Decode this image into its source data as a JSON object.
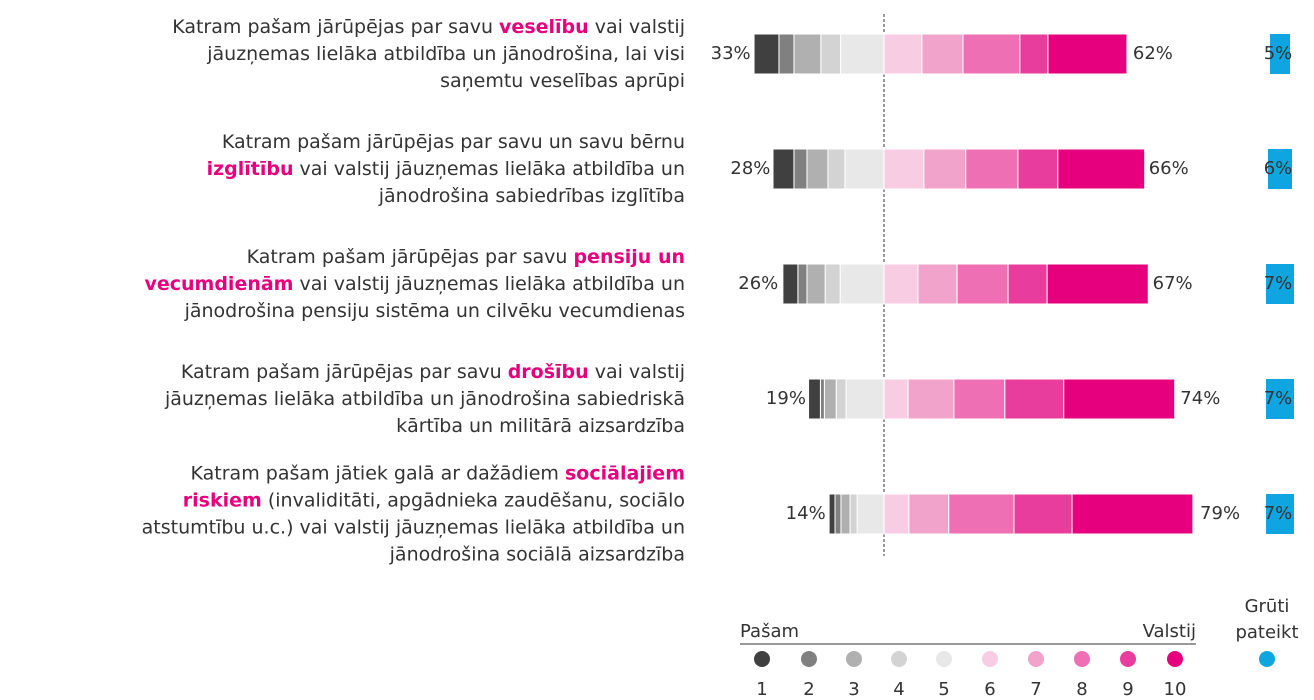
{
  "chart_data": {
    "type": "diverging_bar",
    "rows": [
      {
        "lines": [
          [
            {
              "text": "Katram pašam jārūpējas par savu ",
              "bold": false
            },
            {
              "text": "veselību",
              "bold": true
            },
            {
              "text": " vai valstij",
              "bold": false
            }
          ],
          [
            {
              "text": "jāuzņemas lielāka atbildība un jānodrošina, lai visi",
              "bold": false
            }
          ],
          [
            {
              "text": "saņemtu veselības aprūpi",
              "bold": false
            }
          ]
        ]
      },
      {
        "lines": [
          [
            {
              "text": "Katram pašam jārūpējas par savu un savu bērnu",
              "bold": false
            }
          ],
          [
            {
              "text": "izglītību",
              "bold": true
            },
            {
              "text": " vai valstij jāuzņemas lielāka atbildība un",
              "bold": false
            }
          ],
          [
            {
              "text": "jānodrošina sabiedrības izglītība",
              "bold": false
            }
          ]
        ]
      },
      {
        "lines": [
          [
            {
              "text": "Katram pašam jārūpējas par savu ",
              "bold": false
            },
            {
              "text": "pensiju un",
              "bold": true
            }
          ],
          [
            {
              "text": "vecumdienām",
              "bold": true
            },
            {
              "text": " vai valstij jāuzņemas lielāka atbildība un",
              "bold": false
            }
          ],
          [
            {
              "text": "jānodrošina pensiju sistēma un cilvēku vecumdienas",
              "bold": false
            }
          ]
        ]
      },
      {
        "lines": [
          [
            {
              "text": "Katram pašam jārūpējas par savu ",
              "bold": false
            },
            {
              "text": "drošību",
              "bold": true
            },
            {
              "text": " vai valstij",
              "bold": false
            }
          ],
          [
            {
              "text": "jāuzņemas lielāka atbildība un jānodrošina sabiedriskā",
              "bold": false
            }
          ],
          [
            {
              "text": "kārtība un militārā aizsardzība",
              "bold": false
            }
          ]
        ]
      },
      {
        "lines": [
          [
            {
              "text": "Katram pašam jātiek galā ar dažādiem ",
              "bold": false
            },
            {
              "text": "sociālajiem",
              "bold": true
            }
          ],
          [
            {
              "text": "riskiem",
              "bold": true
            },
            {
              "text": " (invaliditāti, apgādnieka zaudēšanu, sociālo",
              "bold": false
            }
          ],
          [
            {
              "text": "atstumtību u.c.) vai valstij jāuzņemas lielāka atbildība un",
              "bold": false
            }
          ],
          [
            {
              "text": "jānodrošina sociālā aizsardzība",
              "bold": false
            }
          ]
        ]
      }
    ],
    "series": [
      {
        "name": "1",
        "side": "left",
        "color": "#404040",
        "values": [
          6.3,
          5.3,
          3.8,
          3.0,
          1.5
        ]
      },
      {
        "name": "2",
        "side": "left",
        "color": "#808080",
        "values": [
          3.8,
          3.3,
          2.3,
          1.0,
          1.5
        ]
      },
      {
        "name": "3",
        "side": "left",
        "color": "#b0b0b0",
        "values": [
          6.8,
          5.3,
          4.6,
          3.0,
          2.3
        ]
      },
      {
        "name": "4",
        "side": "left",
        "color": "#d3d3d3",
        "values": [
          5.0,
          4.3,
          3.8,
          2.5,
          1.8
        ]
      },
      {
        "name": "5",
        "side": "left",
        "color": "#e8e8e8",
        "values": [
          11.0,
          9.9,
          11.1,
          9.6,
          6.8
        ]
      },
      {
        "name": "6",
        "side": "right",
        "color": "#f8cde3",
        "values": [
          9.6,
          10.1,
          8.6,
          6.1,
          6.3
        ]
      },
      {
        "name": "7",
        "side": "right",
        "color": "#f2a3cb",
        "values": [
          10.4,
          10.6,
          9.9,
          11.6,
          10.1
        ]
      },
      {
        "name": "8",
        "side": "right",
        "color": "#ee6fb3",
        "values": [
          14.4,
          13.2,
          12.9,
          12.9,
          16.5
        ]
      },
      {
        "name": "9",
        "side": "right",
        "color": "#e83d9c",
        "values": [
          7.1,
          10.1,
          9.9,
          14.9,
          14.7
        ]
      },
      {
        "name": "10",
        "side": "right",
        "color": "#e6007e",
        "values": [
          20.0,
          22.0,
          25.6,
          28.1,
          30.6
        ]
      }
    ],
    "left_totals": {
      "values": [
        33,
        28,
        26,
        19,
        14
      ],
      "value_labels": [
        "33%",
        "28%",
        "26%",
        "19%",
        "14%"
      ]
    },
    "right_totals": {
      "values": [
        62,
        66,
        67,
        74,
        79
      ],
      "value_labels": [
        "62%",
        "66%",
        "67%",
        "74%",
        "79%"
      ]
    },
    "undecided": {
      "name": "Grūti pateikt",
      "color": "#0ea5e0",
      "values": [
        5,
        6,
        7,
        7,
        7
      ],
      "value_labels": [
        "5%",
        "6%",
        "7%",
        "7%",
        "7%"
      ]
    },
    "legend_left": "Pašam",
    "legend_right": "Valstij"
  }
}
